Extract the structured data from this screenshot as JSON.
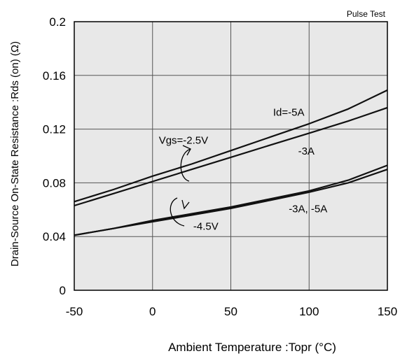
{
  "chart_data": {
    "type": "line",
    "note_top_right": "Pulse Test",
    "xlabel": "Ambient Temperature :Topr  (°C)",
    "ylabel": "Drain-Source On-State Resistance :Rds (on)  (Ω)",
    "xlim": [
      -50,
      150
    ],
    "ylim": [
      0,
      0.2
    ],
    "x_ticks": [
      -50,
      0,
      50,
      100,
      150
    ],
    "x_tick_labels": [
      "-50",
      "0",
      "50",
      "100",
      "150"
    ],
    "y_ticks": [
      0,
      0.04,
      0.08,
      0.12,
      0.16,
      0.2
    ],
    "y_tick_labels": [
      "0",
      "0.04",
      "0.08",
      "0.12",
      "0.16",
      "0.2"
    ],
    "grid": true,
    "plot_background": "#e8e8e8",
    "line_color": "#111111",
    "series": [
      {
        "x": [
          -50,
          -25,
          0,
          25,
          50,
          75,
          100,
          125,
          150
        ],
        "y": [
          0.066,
          0.075,
          0.085,
          0.094,
          0.104,
          0.114,
          0.124,
          0.135,
          0.149
        ]
      },
      {
        "x": [
          -50,
          -25,
          0,
          25,
          50,
          75,
          100,
          125,
          150
        ],
        "y": [
          0.063,
          0.072,
          0.081,
          0.09,
          0.099,
          0.108,
          0.117,
          0.126,
          0.136
        ]
      },
      {
        "x": [
          -50,
          -25,
          0,
          25,
          50,
          75,
          100,
          125,
          150
        ],
        "y": [
          0.041,
          0.046,
          0.052,
          0.057,
          0.062,
          0.068,
          0.074,
          0.082,
          0.093
        ]
      },
      {
        "x": [
          -50,
          -25,
          0,
          25,
          50,
          75,
          100,
          125,
          150
        ],
        "y": [
          0.041,
          0.046,
          0.051,
          0.056,
          0.061,
          0.067,
          0.073,
          0.08,
          0.09
        ]
      }
    ],
    "annotations": [
      {
        "text": "Id=-5A",
        "x": 77,
        "y": 0.13
      },
      {
        "text": "Vgs=-2.5V",
        "x": 4,
        "y": 0.109
      },
      {
        "text": "-3A",
        "x": 93,
        "y": 0.101
      },
      {
        "text": "-3A, -5A",
        "x": 87,
        "y": 0.058
      },
      {
        "text": "-4.5V",
        "x": 26,
        "y": 0.045
      }
    ]
  }
}
